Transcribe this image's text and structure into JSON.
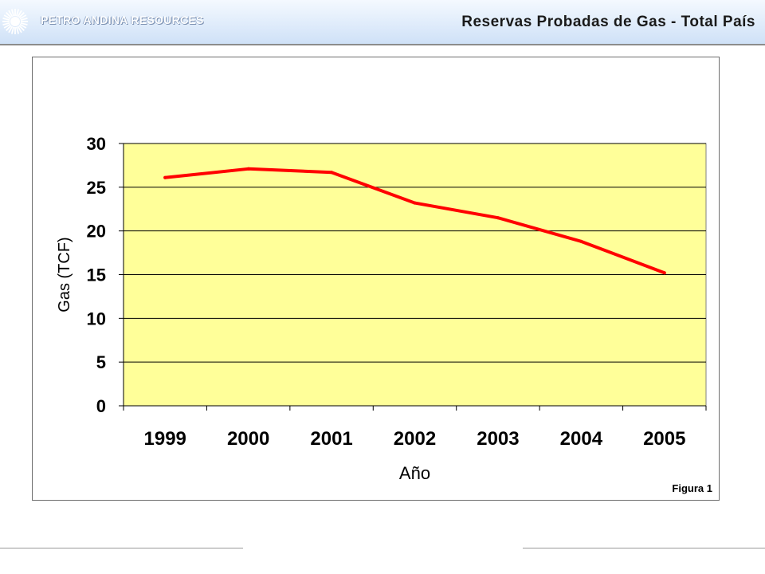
{
  "header": {
    "company": "PETRO ANDINA RESOURCES",
    "title": "Reservas Probadas de Gas - Total País",
    "logo_icon": "starburst-logo-icon"
  },
  "figure_label": "Figura 1",
  "colors": {
    "plot_background": "#ffff99",
    "series_line": "#ff0000",
    "header_gradient_top": "#f4f9ff",
    "header_gradient_bottom": "#cfe1f7"
  },
  "chart_data": {
    "type": "line",
    "title": "",
    "xlabel": "Año",
    "ylabel": "Gas (TCF)",
    "categories": [
      "1999",
      "2000",
      "2001",
      "2002",
      "2003",
      "2004",
      "2005"
    ],
    "series": [
      {
        "values": [
          26.1,
          27.1,
          26.7,
          23.2,
          21.5,
          18.8,
          15.2
        ]
      }
    ],
    "ylim": [
      0,
      30
    ],
    "yticks": [
      0,
      5,
      10,
      15,
      20,
      25,
      30
    ],
    "grid": true,
    "legend": "none"
  }
}
